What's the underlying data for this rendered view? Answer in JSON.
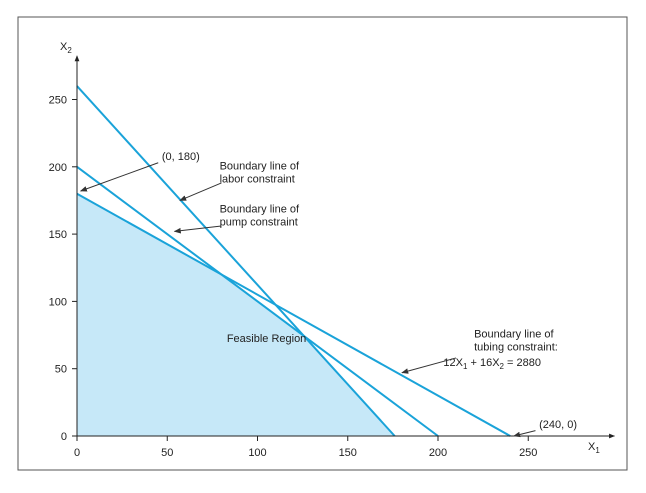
{
  "chart_data": {
    "type": "line",
    "xlabel": "X",
    "xlabel_sub": "1",
    "ylabel": "X",
    "ylabel_sub": "2",
    "xlim": [
      0,
      290
    ],
    "ylim": [
      0,
      275
    ],
    "x_ticks": [
      0,
      50,
      100,
      150,
      200,
      250
    ],
    "y_ticks": [
      0,
      50,
      100,
      150,
      200,
      250
    ],
    "grid": false,
    "colors": {
      "line": "#1aa3d9",
      "feasible_fill": "#c6e8f8",
      "border": "#555555"
    },
    "feasible_region": {
      "label": "Feasible Region",
      "label_at": [
        83,
        70
      ],
      "vertices": [
        [
          0,
          0
        ],
        [
          0,
          180
        ],
        [
          80,
          120
        ],
        [
          128,
          72
        ],
        [
          176,
          0
        ]
      ]
    },
    "lines": [
      {
        "name": "labor",
        "points": [
          [
            0,
            260
          ],
          [
            176,
            0
          ]
        ]
      },
      {
        "name": "pump",
        "points": [
          [
            0,
            200
          ],
          [
            200,
            0
          ]
        ]
      },
      {
        "name": "tubing",
        "points": [
          [
            0,
            180
          ],
          [
            240,
            0
          ]
        ]
      }
    ],
    "annotations": [
      {
        "id": "point-0-180",
        "lines": [
          "(0, 180)"
        ],
        "text_at": [
          47,
          205
        ],
        "arrow_from": [
          45,
          203
        ],
        "arrow_to": [
          2,
          182
        ]
      },
      {
        "id": "labor-label",
        "lines": [
          "Boundary line of",
          "labor constraint"
        ],
        "text_at": [
          79,
          198
        ],
        "arrow_from": [
          80,
          188
        ],
        "arrow_to": [
          57,
          175
        ]
      },
      {
        "id": "pump-label",
        "lines": [
          "Boundary line of",
          "pump constraint"
        ],
        "text_at": [
          79,
          166
        ],
        "arrow_from": [
          80,
          156
        ],
        "arrow_to": [
          54,
          152
        ]
      },
      {
        "id": "tubing-label",
        "lines": [
          "Boundary line of",
          "tubing constraint:"
        ],
        "text_at": [
          220,
          73
        ],
        "arrow_from": [
          210,
          58
        ],
        "arrow_to": [
          180,
          47
        ]
      },
      {
        "id": "point-240-0",
        "lines": [
          "(240, 0)"
        ],
        "text_at": [
          256,
          6
        ],
        "arrow_from": [
          254,
          4
        ],
        "arrow_to": [
          242,
          0
        ]
      }
    ],
    "equation": {
      "a": "12X",
      "a_sub": "1",
      "op": " + 16X",
      "b_sub": "2",
      "rhs": " = 2880",
      "text_at": [
        203,
        52
      ]
    }
  }
}
